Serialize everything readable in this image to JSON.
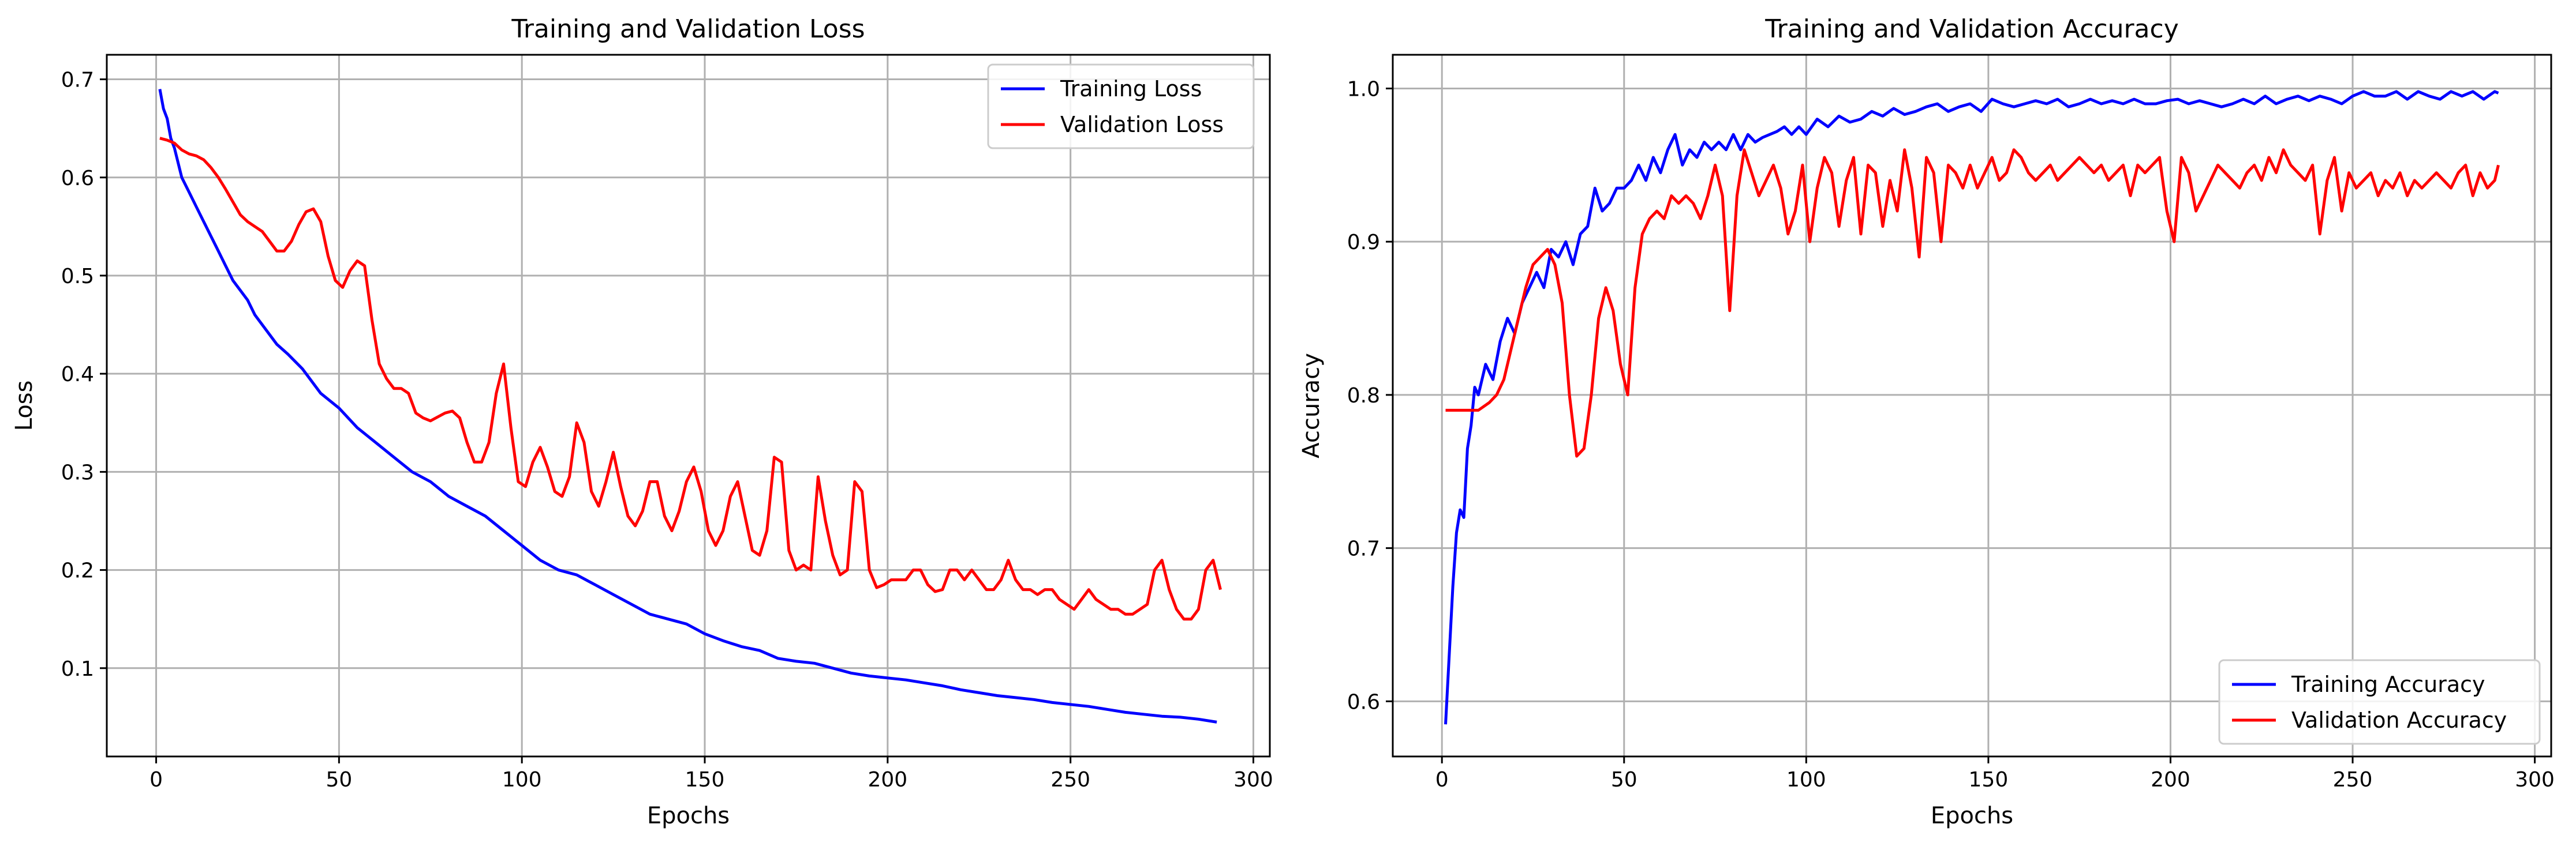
{
  "chart_data": [
    {
      "type": "line",
      "title": "Training and Validation Loss",
      "xlabel": "Epochs",
      "ylabel": "Loss",
      "xlim": [
        -13.5,
        304.5
      ],
      "ylim": [
        0.01,
        0.725
      ],
      "xticks": [
        0,
        50,
        100,
        150,
        200,
        250,
        300
      ],
      "yticks": [
        0.1,
        0.2,
        0.3,
        0.4,
        0.5,
        0.6,
        0.7
      ],
      "xtick_labels": [
        "0",
        "50",
        "100",
        "150",
        "200",
        "250",
        "300"
      ],
      "ytick_labels": [
        "0.1",
        "0.2",
        "0.3",
        "0.4",
        "0.5",
        "0.6",
        "0.7"
      ],
      "grid": true,
      "legend_position": "upper right",
      "series": [
        {
          "name": "Training Loss",
          "color": "#0000ff",
          "x": [
            1,
            2,
            3,
            4,
            5,
            7,
            9,
            11,
            13,
            15,
            17,
            19,
            21,
            23,
            25,
            27,
            30,
            33,
            36,
            40,
            45,
            50,
            55,
            60,
            65,
            70,
            75,
            80,
            85,
            90,
            95,
            100,
            105,
            110,
            115,
            120,
            125,
            130,
            135,
            140,
            145,
            150,
            155,
            160,
            165,
            170,
            175,
            180,
            185,
            190,
            195,
            200,
            205,
            210,
            215,
            220,
            225,
            230,
            235,
            240,
            245,
            250,
            255,
            260,
            265,
            270,
            275,
            280,
            285,
            290
          ],
          "y": [
            0.69,
            0.67,
            0.66,
            0.64,
            0.63,
            0.6,
            0.585,
            0.57,
            0.555,
            0.54,
            0.525,
            0.51,
            0.495,
            0.485,
            0.475,
            0.46,
            0.445,
            0.43,
            0.42,
            0.405,
            0.38,
            0.365,
            0.345,
            0.33,
            0.315,
            0.3,
            0.29,
            0.275,
            0.265,
            0.255,
            0.24,
            0.225,
            0.21,
            0.2,
            0.195,
            0.185,
            0.175,
            0.165,
            0.155,
            0.15,
            0.145,
            0.135,
            0.128,
            0.122,
            0.118,
            0.11,
            0.107,
            0.105,
            0.1,
            0.095,
            0.092,
            0.09,
            0.088,
            0.085,
            0.082,
            0.078,
            0.075,
            0.072,
            0.07,
            0.068,
            0.065,
            0.063,
            0.061,
            0.058,
            0.055,
            0.053,
            0.051,
            0.05,
            0.048,
            0.045
          ]
        },
        {
          "name": "Validation Loss",
          "color": "#ff0000",
          "x": [
            1,
            3,
            5,
            7,
            9,
            11,
            13,
            15,
            17,
            19,
            21,
            23,
            25,
            27,
            29,
            31,
            33,
            35,
            37,
            39,
            41,
            43,
            45,
            47,
            49,
            51,
            53,
            55,
            57,
            59,
            61,
            63,
            65,
            67,
            69,
            71,
            73,
            75,
            77,
            79,
            81,
            83,
            85,
            87,
            89,
            91,
            93,
            95,
            97,
            99,
            101,
            103,
            105,
            107,
            109,
            111,
            113,
            115,
            117,
            119,
            121,
            123,
            125,
            127,
            129,
            131,
            133,
            135,
            137,
            139,
            141,
            143,
            145,
            147,
            149,
            151,
            153,
            155,
            157,
            159,
            161,
            163,
            165,
            167,
            169,
            171,
            173,
            175,
            177,
            179,
            181,
            183,
            185,
            187,
            189,
            191,
            193,
            195,
            197,
            199,
            201,
            203,
            205,
            207,
            209,
            211,
            213,
            215,
            217,
            219,
            221,
            223,
            225,
            227,
            229,
            231,
            233,
            235,
            237,
            239,
            241,
            243,
            245,
            247,
            249,
            251,
            253,
            255,
            257,
            259,
            261,
            263,
            265,
            267,
            269,
            271,
            273,
            275,
            277,
            279,
            281,
            283,
            285,
            287,
            289,
            291
          ],
          "y": [
            0.64,
            0.638,
            0.635,
            0.628,
            0.624,
            0.622,
            0.618,
            0.61,
            0.6,
            0.588,
            0.575,
            0.562,
            0.555,
            0.55,
            0.545,
            0.535,
            0.525,
            0.525,
            0.535,
            0.552,
            0.565,
            0.568,
            0.555,
            0.52,
            0.495,
            0.488,
            0.505,
            0.515,
            0.51,
            0.455,
            0.41,
            0.395,
            0.385,
            0.385,
            0.38,
            0.36,
            0.355,
            0.352,
            0.356,
            0.36,
            0.362,
            0.355,
            0.33,
            0.31,
            0.31,
            0.33,
            0.38,
            0.41,
            0.345,
            0.29,
            0.285,
            0.31,
            0.325,
            0.305,
            0.28,
            0.275,
            0.295,
            0.35,
            0.33,
            0.28,
            0.265,
            0.29,
            0.32,
            0.285,
            0.255,
            0.245,
            0.26,
            0.29,
            0.29,
            0.255,
            0.24,
            0.26,
            0.29,
            0.305,
            0.28,
            0.24,
            0.225,
            0.24,
            0.275,
            0.29,
            0.255,
            0.22,
            0.215,
            0.24,
            0.315,
            0.31,
            0.22,
            0.2,
            0.205,
            0.2,
            0.295,
            0.25,
            0.215,
            0.195,
            0.2,
            0.29,
            0.28,
            0.2,
            0.182,
            0.185,
            0.19,
            0.19,
            0.19,
            0.2,
            0.2,
            0.185,
            0.178,
            0.18,
            0.2,
            0.2,
            0.19,
            0.2,
            0.19,
            0.18,
            0.18,
            0.19,
            0.21,
            0.19,
            0.18,
            0.18,
            0.175,
            0.18,
            0.18,
            0.17,
            0.165,
            0.16,
            0.17,
            0.18,
            0.17,
            0.165,
            0.16,
            0.16,
            0.155,
            0.155,
            0.16,
            0.165,
            0.2,
            0.21,
            0.18,
            0.16,
            0.15,
            0.15,
            0.16,
            0.2,
            0.21,
            0.18
          ]
        }
      ]
    },
    {
      "type": "line",
      "title": "Training and Validation Accuracy",
      "xlabel": "Epochs",
      "ylabel": "Accuracy",
      "xlim": [
        -13.5,
        304.5
      ],
      "ylim": [
        0.564,
        1.022
      ],
      "xticks": [
        0,
        50,
        100,
        150,
        200,
        250,
        300
      ],
      "yticks": [
        0.6,
        0.7,
        0.8,
        0.9,
        1.0
      ],
      "xtick_labels": [
        "0",
        "50",
        "100",
        "150",
        "200",
        "250",
        "300"
      ],
      "ytick_labels": [
        "0.6",
        "0.7",
        "0.8",
        "0.9",
        "1.0"
      ],
      "grid": true,
      "legend_position": "lower right",
      "series": [
        {
          "name": "Training Accuracy",
          "color": "#0000ff",
          "x": [
            1,
            2,
            3,
            4,
            5,
            6,
            7,
            8,
            9,
            10,
            12,
            14,
            16,
            18,
            20,
            22,
            24,
            26,
            28,
            30,
            32,
            34,
            36,
            38,
            40,
            42,
            44,
            46,
            48,
            50,
            52,
            54,
            56,
            58,
            60,
            62,
            64,
            66,
            68,
            70,
            72,
            74,
            76,
            78,
            80,
            82,
            84,
            86,
            88,
            90,
            92,
            94,
            96,
            98,
            100,
            103,
            106,
            109,
            112,
            115,
            118,
            121,
            124,
            127,
            130,
            133,
            136,
            139,
            142,
            145,
            148,
            151,
            154,
            157,
            160,
            163,
            166,
            169,
            172,
            175,
            178,
            181,
            184,
            187,
            190,
            193,
            196,
            199,
            202,
            205,
            208,
            211,
            214,
            217,
            220,
            223,
            226,
            229,
            232,
            235,
            238,
            241,
            244,
            247,
            250,
            253,
            256,
            259,
            262,
            265,
            268,
            271,
            274,
            277,
            280,
            283,
            286,
            289,
            290
          ],
          "y": [
            0.585,
            0.63,
            0.675,
            0.71,
            0.725,
            0.72,
            0.765,
            0.78,
            0.805,
            0.8,
            0.82,
            0.81,
            0.835,
            0.85,
            0.84,
            0.86,
            0.87,
            0.88,
            0.87,
            0.895,
            0.89,
            0.9,
            0.885,
            0.905,
            0.91,
            0.935,
            0.92,
            0.925,
            0.935,
            0.935,
            0.94,
            0.95,
            0.94,
            0.955,
            0.945,
            0.96,
            0.97,
            0.95,
            0.96,
            0.955,
            0.965,
            0.96,
            0.965,
            0.96,
            0.97,
            0.96,
            0.97,
            0.965,
            0.968,
            0.97,
            0.972,
            0.975,
            0.97,
            0.975,
            0.97,
            0.98,
            0.975,
            0.982,
            0.978,
            0.98,
            0.985,
            0.982,
            0.987,
            0.983,
            0.985,
            0.988,
            0.99,
            0.985,
            0.988,
            0.99,
            0.985,
            0.993,
            0.99,
            0.988,
            0.99,
            0.992,
            0.99,
            0.993,
            0.988,
            0.99,
            0.993,
            0.99,
            0.992,
            0.99,
            0.993,
            0.99,
            0.99,
            0.992,
            0.993,
            0.99,
            0.992,
            0.99,
            0.988,
            0.99,
            0.993,
            0.99,
            0.995,
            0.99,
            0.993,
            0.995,
            0.992,
            0.995,
            0.993,
            0.99,
            0.995,
            0.998,
            0.995,
            0.995,
            0.998,
            0.993,
            0.998,
            0.995,
            0.993,
            0.998,
            0.995,
            0.998,
            0.993,
            0.998,
            0.997
          ]
        },
        {
          "name": "Validation Accuracy",
          "color": "#ff0000",
          "x": [
            1,
            5,
            10,
            13,
            15,
            17,
            19,
            21,
            23,
            25,
            27,
            29,
            31,
            33,
            35,
            37,
            39,
            41,
            43,
            45,
            47,
            49,
            51,
            53,
            55,
            57,
            59,
            61,
            63,
            65,
            67,
            69,
            71,
            73,
            75,
            77,
            79,
            81,
            83,
            85,
            87,
            89,
            91,
            93,
            95,
            97,
            99,
            101,
            103,
            105,
            107,
            109,
            111,
            113,
            115,
            117,
            119,
            121,
            123,
            125,
            127,
            129,
            131,
            133,
            135,
            137,
            139,
            141,
            143,
            145,
            147,
            149,
            151,
            153,
            155,
            157,
            159,
            161,
            163,
            165,
            167,
            169,
            171,
            173,
            175,
            177,
            179,
            181,
            183,
            185,
            187,
            189,
            191,
            193,
            195,
            197,
            199,
            201,
            203,
            205,
            207,
            209,
            211,
            213,
            215,
            217,
            219,
            221,
            223,
            225,
            227,
            229,
            231,
            233,
            235,
            237,
            239,
            241,
            243,
            245,
            247,
            249,
            251,
            253,
            255,
            257,
            259,
            261,
            263,
            265,
            267,
            269,
            271,
            273,
            275,
            277,
            279,
            281,
            283,
            285,
            287,
            289,
            290
          ],
          "y": [
            0.79,
            0.79,
            0.79,
            0.795,
            0.8,
            0.81,
            0.83,
            0.85,
            0.87,
            0.885,
            0.89,
            0.895,
            0.885,
            0.86,
            0.8,
            0.76,
            0.765,
            0.8,
            0.85,
            0.87,
            0.855,
            0.82,
            0.8,
            0.87,
            0.905,
            0.915,
            0.92,
            0.915,
            0.93,
            0.925,
            0.93,
            0.925,
            0.915,
            0.93,
            0.95,
            0.93,
            0.855,
            0.93,
            0.96,
            0.945,
            0.93,
            0.94,
            0.95,
            0.935,
            0.905,
            0.92,
            0.95,
            0.9,
            0.935,
            0.955,
            0.945,
            0.91,
            0.94,
            0.955,
            0.905,
            0.95,
            0.945,
            0.91,
            0.94,
            0.92,
            0.96,
            0.935,
            0.89,
            0.955,
            0.945,
            0.9,
            0.95,
            0.945,
            0.935,
            0.95,
            0.935,
            0.945,
            0.955,
            0.94,
            0.945,
            0.96,
            0.955,
            0.945,
            0.94,
            0.945,
            0.95,
            0.94,
            0.945,
            0.95,
            0.955,
            0.95,
            0.945,
            0.95,
            0.94,
            0.945,
            0.95,
            0.93,
            0.95,
            0.945,
            0.95,
            0.955,
            0.92,
            0.9,
            0.955,
            0.945,
            0.92,
            0.93,
            0.94,
            0.95,
            0.945,
            0.94,
            0.935,
            0.945,
            0.95,
            0.94,
            0.955,
            0.945,
            0.96,
            0.95,
            0.945,
            0.94,
            0.95,
            0.905,
            0.94,
            0.955,
            0.92,
            0.945,
            0.935,
            0.94,
            0.945,
            0.93,
            0.94,
            0.935,
            0.945,
            0.93,
            0.94,
            0.935,
            0.94,
            0.945,
            0.94,
            0.935,
            0.945,
            0.95,
            0.93,
            0.945,
            0.935,
            0.94,
            0.95
          ]
        }
      ]
    }
  ]
}
